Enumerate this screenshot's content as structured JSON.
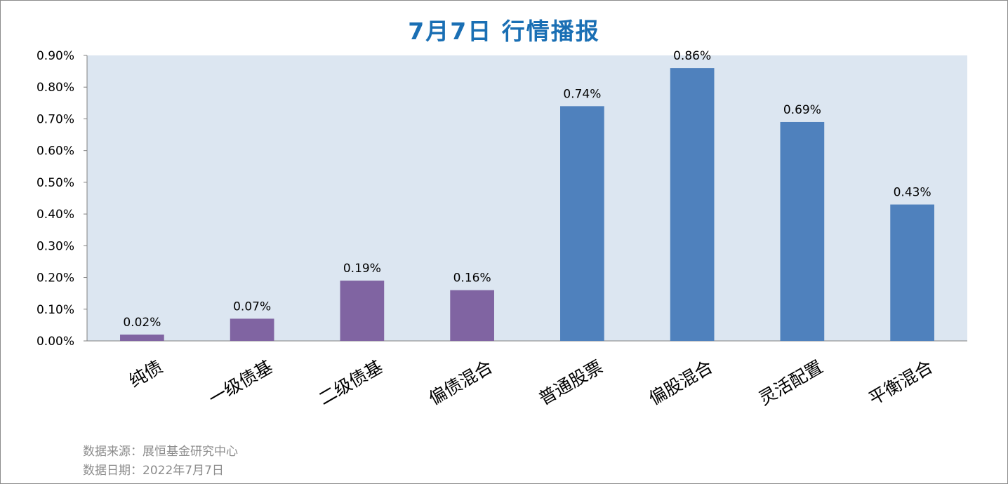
{
  "title": "7月7日  行情播报",
  "chart_data": {
    "type": "bar",
    "categories": [
      "纯债",
      "一级债基",
      "二级债基",
      "偏债混合",
      "普通股票",
      "偏股混合",
      "灵活配置",
      "平衡混合"
    ],
    "values": [
      0.0002,
      0.0007,
      0.0019,
      0.0016,
      0.0074,
      0.0086,
      0.0069,
      0.0043
    ],
    "data_labels": [
      "0.02%",
      "0.07%",
      "0.19%",
      "0.16%",
      "0.74%",
      "0.86%",
      "0.69%",
      "0.43%"
    ],
    "bar_colors": [
      "#8064a2",
      "#8064a2",
      "#8064a2",
      "#8064a2",
      "#4f81bd",
      "#4f81bd",
      "#4f81bd",
      "#4f81bd"
    ],
    "ylim": [
      0,
      0.009
    ],
    "yticks": [
      0,
      0.001,
      0.002,
      0.003,
      0.004,
      0.005,
      0.006,
      0.007,
      0.008,
      0.009
    ],
    "ytick_labels": [
      "0.00%",
      "0.10%",
      "0.20%",
      "0.30%",
      "0.40%",
      "0.50%",
      "0.60%",
      "0.70%",
      "0.80%",
      "0.90%"
    ],
    "plot_background": "#dce6f1",
    "grid": false
  },
  "notes": {
    "source": "数据来源：展恒基金研究中心",
    "date": "数据日期：2022年7月7日"
  }
}
